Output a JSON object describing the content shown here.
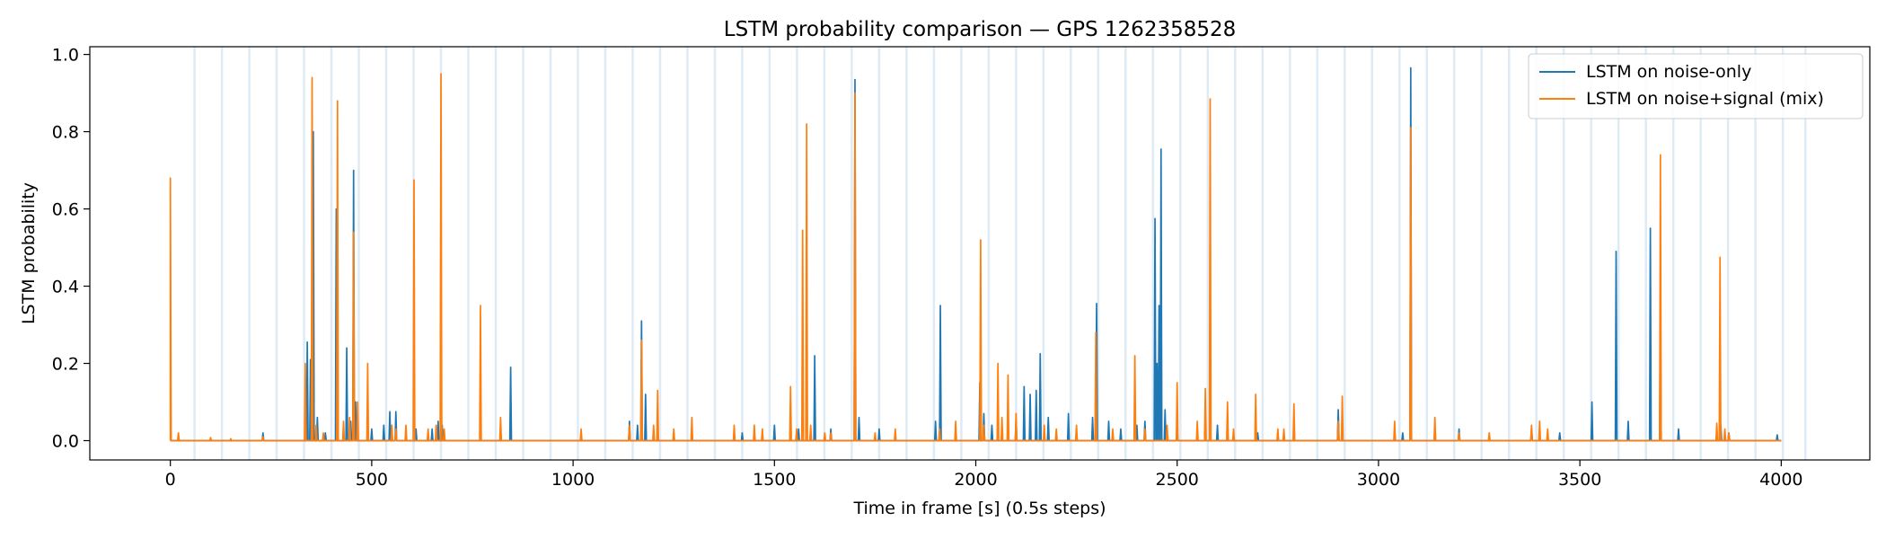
{
  "chart_data": {
    "type": "line",
    "title": "LSTM probability comparison — GPS 1262358528",
    "xlabel": "Time in frame [s] (0.5s steps)",
    "ylabel": "LSTM probability",
    "xlim": [
      -200,
      4220
    ],
    "ylim": [
      -0.05,
      1.02
    ],
    "xticks": [
      0,
      500,
      1000,
      1500,
      2000,
      2500,
      3000,
      3500,
      4000
    ],
    "yticks": [
      0.0,
      0.2,
      0.4,
      0.6,
      0.8,
      1.0
    ],
    "ytick_labels": [
      "0.0",
      "0.2",
      "0.4",
      "0.6",
      "0.8",
      "1.0"
    ],
    "x_range": [
      0,
      4000
    ],
    "grid": false,
    "legend_position": "top-right",
    "segment_boundaries": [
      60,
      128,
      196,
      264,
      332,
      400,
      468,
      536,
      604,
      672,
      740,
      808,
      876,
      944,
      1012,
      1080,
      1148,
      1216,
      1284,
      1352,
      1420,
      1488,
      1556,
      1624,
      1692,
      1760,
      1828,
      1896,
      1964,
      2032,
      2100,
      2168,
      2236,
      2304,
      2372,
      2440,
      2508,
      2576,
      2644,
      2712,
      2780,
      2848,
      2916,
      2984,
      3052,
      3120,
      3188,
      3256,
      3324,
      3392,
      3460,
      3528,
      3596,
      3664,
      3732,
      3800,
      3868,
      3936,
      4004,
      4060
    ],
    "series": [
      {
        "name": "LSTM on noise-only",
        "color": "#1f77b4",
        "spikes": [
          [
            230,
            0.02
          ],
          [
            340,
            0.255
          ],
          [
            348,
            0.21
          ],
          [
            355,
            0.8
          ],
          [
            365,
            0.06
          ],
          [
            385,
            0.02
          ],
          [
            412,
            0.6
          ],
          [
            438,
            0.24
          ],
          [
            448,
            0.05
          ],
          [
            455,
            0.7
          ],
          [
            460,
            0.1
          ],
          [
            500,
            0.03
          ],
          [
            530,
            0.04
          ],
          [
            545,
            0.075
          ],
          [
            560,
            0.075
          ],
          [
            610,
            0.03
          ],
          [
            650,
            0.03
          ],
          [
            665,
            0.05
          ],
          [
            675,
            0.04
          ],
          [
            845,
            0.19
          ],
          [
            1140,
            0.05
          ],
          [
            1160,
            0.04
          ],
          [
            1170,
            0.31
          ],
          [
            1180,
            0.12
          ],
          [
            1420,
            0.02
          ],
          [
            1500,
            0.04
          ],
          [
            1560,
            0.03
          ],
          [
            1600,
            0.22
          ],
          [
            1640,
            0.03
          ],
          [
            1700,
            0.935
          ],
          [
            1710,
            0.06
          ],
          [
            1760,
            0.03
          ],
          [
            1900,
            0.05
          ],
          [
            1912,
            0.35
          ],
          [
            2010,
            0.15
          ],
          [
            2020,
            0.07
          ],
          [
            2040,
            0.04
          ],
          [
            2100,
            0.05
          ],
          [
            2120,
            0.14
          ],
          [
            2135,
            0.12
          ],
          [
            2150,
            0.13
          ],
          [
            2160,
            0.225
          ],
          [
            2180,
            0.06
          ],
          [
            2230,
            0.07
          ],
          [
            2290,
            0.06
          ],
          [
            2300,
            0.355
          ],
          [
            2330,
            0.05
          ],
          [
            2360,
            0.03
          ],
          [
            2400,
            0.04
          ],
          [
            2420,
            0.05
          ],
          [
            2445,
            0.575
          ],
          [
            2450,
            0.2
          ],
          [
            2455,
            0.35
          ],
          [
            2460,
            0.755
          ],
          [
            2470,
            0.08
          ],
          [
            2500,
            0.04
          ],
          [
            2600,
            0.04
          ],
          [
            2700,
            0.02
          ],
          [
            2900,
            0.08
          ],
          [
            3060,
            0.02
          ],
          [
            3080,
            0.965
          ],
          [
            3200,
            0.03
          ],
          [
            3380,
            0.03
          ],
          [
            3450,
            0.02
          ],
          [
            3530,
            0.1
          ],
          [
            3590,
            0.49
          ],
          [
            3620,
            0.05
          ],
          [
            3675,
            0.55
          ],
          [
            3700,
            0.38
          ],
          [
            3745,
            0.03
          ],
          [
            3850,
            0.04
          ],
          [
            3870,
            0.02
          ],
          [
            3990,
            0.015
          ]
        ]
      },
      {
        "name": "LSTM on noise+signal (mix)",
        "color": "#ff7f0e",
        "spikes": [
          [
            0,
            0.68
          ],
          [
            20,
            0.02
          ],
          [
            100,
            0.008
          ],
          [
            150,
            0.005
          ],
          [
            230,
            0.01
          ],
          [
            335,
            0.2
          ],
          [
            352,
            0.94
          ],
          [
            362,
            0.04
          ],
          [
            380,
            0.02
          ],
          [
            415,
            0.88
          ],
          [
            430,
            0.05
          ],
          [
            445,
            0.06
          ],
          [
            455,
            0.54
          ],
          [
            465,
            0.1
          ],
          [
            490,
            0.2
          ],
          [
            550,
            0.04
          ],
          [
            560,
            0.03
          ],
          [
            585,
            0.04
          ],
          [
            605,
            0.675
          ],
          [
            640,
            0.03
          ],
          [
            660,
            0.04
          ],
          [
            672,
            0.95
          ],
          [
            680,
            0.03
          ],
          [
            770,
            0.35
          ],
          [
            820,
            0.06
          ],
          [
            1020,
            0.03
          ],
          [
            1140,
            0.04
          ],
          [
            1170,
            0.26
          ],
          [
            1200,
            0.04
          ],
          [
            1210,
            0.13
          ],
          [
            1250,
            0.03
          ],
          [
            1295,
            0.06
          ],
          [
            1400,
            0.04
          ],
          [
            1450,
            0.04
          ],
          [
            1470,
            0.03
          ],
          [
            1540,
            0.14
          ],
          [
            1555,
            0.03
          ],
          [
            1570,
            0.545
          ],
          [
            1580,
            0.82
          ],
          [
            1590,
            0.04
          ],
          [
            1625,
            0.02
          ],
          [
            1640,
            0.02
          ],
          [
            1700,
            0.9
          ],
          [
            1750,
            0.02
          ],
          [
            1800,
            0.03
          ],
          [
            1910,
            0.03
          ],
          [
            1950,
            0.05
          ],
          [
            2012,
            0.52
          ],
          [
            2020,
            0.04
          ],
          [
            2055,
            0.2
          ],
          [
            2065,
            0.06
          ],
          [
            2080,
            0.17
          ],
          [
            2100,
            0.07
          ],
          [
            2170,
            0.04
          ],
          [
            2200,
            0.03
          ],
          [
            2250,
            0.04
          ],
          [
            2298,
            0.28
          ],
          [
            2340,
            0.03
          ],
          [
            2395,
            0.22
          ],
          [
            2420,
            0.03
          ],
          [
            2475,
            0.04
          ],
          [
            2500,
            0.15
          ],
          [
            2550,
            0.05
          ],
          [
            2570,
            0.135
          ],
          [
            2582,
            0.885
          ],
          [
            2625,
            0.1
          ],
          [
            2640,
            0.03
          ],
          [
            2695,
            0.12
          ],
          [
            2750,
            0.03
          ],
          [
            2765,
            0.03
          ],
          [
            2790,
            0.095
          ],
          [
            2900,
            0.05
          ],
          [
            2910,
            0.115
          ],
          [
            3040,
            0.05
          ],
          [
            3080,
            0.81
          ],
          [
            3140,
            0.06
          ],
          [
            3200,
            0.02
          ],
          [
            3275,
            0.02
          ],
          [
            3380,
            0.04
          ],
          [
            3400,
            0.05
          ],
          [
            3420,
            0.03
          ],
          [
            3700,
            0.74
          ],
          [
            3840,
            0.045
          ],
          [
            3848,
            0.475
          ],
          [
            3860,
            0.03
          ],
          [
            3870,
            0.02
          ]
        ]
      }
    ]
  }
}
